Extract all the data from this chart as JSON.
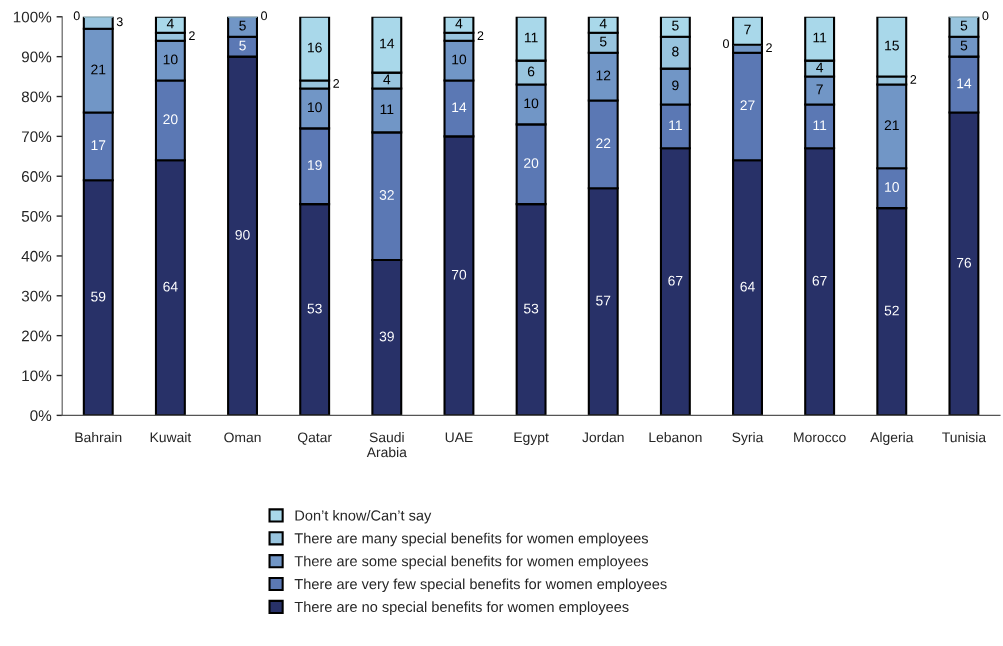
{
  "chart_data": {
    "type": "bar",
    "stacked": true,
    "data_labels": true,
    "legend": "bottom",
    "grid": false,
    "categories": [
      "Bahrain",
      "Kuwait",
      "Oman",
      "Qatar",
      "Saudi Arabia",
      "UAE",
      "Egypt",
      "Jordan",
      "Lebanon",
      "Syria",
      "Morocco",
      "Algeria",
      "Tunisia"
    ],
    "ylim": [
      0,
      100
    ],
    "yticks": [
      {
        "value": 0,
        "label": "0%"
      },
      {
        "value": 10,
        "label": "10%"
      },
      {
        "value": 20,
        "label": "20%"
      },
      {
        "value": 30,
        "label": "30%"
      },
      {
        "value": 40,
        "label": "40%"
      },
      {
        "value": 50,
        "label": "50%"
      },
      {
        "value": 60,
        "label": "60%"
      },
      {
        "value": 70,
        "label": "70%"
      },
      {
        "value": 80,
        "label": "80%"
      },
      {
        "value": 90,
        "label": "90%"
      },
      {
        "value": 100,
        "label": "100%"
      }
    ],
    "series": [
      {
        "name": "There are no special benefits for women employees",
        "color": "#283168",
        "values": [
          59,
          64,
          90,
          53,
          39,
          70,
          53,
          57,
          67,
          64,
          67,
          52,
          76
        ]
      },
      {
        "name": "There are very few special benefits for women employees",
        "color": "#5b78b4",
        "values": [
          17,
          20,
          5,
          19,
          32,
          14,
          20,
          22,
          11,
          27,
          11,
          10,
          14
        ]
      },
      {
        "name": "There are some special benefits for women employees",
        "color": "#7196c6",
        "values": [
          21,
          10,
          5,
          10,
          11,
          10,
          10,
          12,
          9,
          2,
          7,
          21,
          5
        ]
      },
      {
        "name": "There are many special benefits for women employees",
        "color": "#98c4de",
        "values": [
          3,
          2,
          0,
          2,
          4,
          2,
          6,
          5,
          8,
          0,
          4,
          2,
          5
        ]
      },
      {
        "name": "Don’t know/Can’t say",
        "color": "#a9d8ea",
        "values": [
          0,
          4,
          null,
          16,
          14,
          4,
          11,
          4,
          5,
          7,
          11,
          15,
          0
        ]
      }
    ]
  }
}
